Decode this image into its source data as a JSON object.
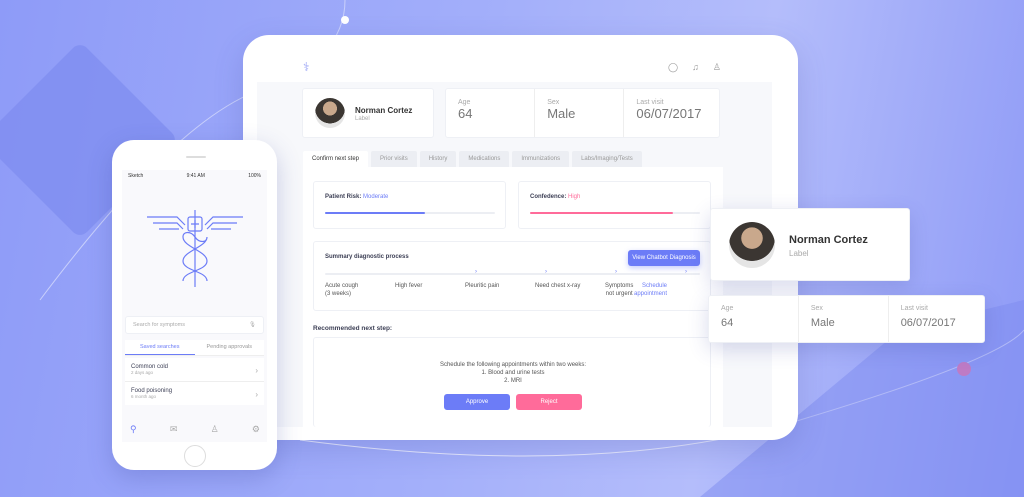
{
  "colors": {
    "accent": "#6c7cf7",
    "pink": "#ff6b9a"
  },
  "tablet": {
    "icons": [
      "chat-icon",
      "bell-icon",
      "user-icon"
    ],
    "patient": {
      "name": "Norman Cortez",
      "label": "Label"
    },
    "stats": [
      {
        "label": "Age",
        "value": "64"
      },
      {
        "label": "Sex",
        "value": "Male"
      },
      {
        "label": "Last visit",
        "value": "06/07/2017"
      }
    ],
    "tabs": [
      "Confirm next step",
      "Prior visits",
      "History",
      "Medications",
      "Immunizations",
      "Labs/Imaging/Tests"
    ],
    "risk": {
      "label": "Patient Risk:",
      "value": "Moderate",
      "level": 0.59
    },
    "confidence": {
      "label": "Confedence:",
      "value": "High",
      "level": 0.84
    },
    "summary": {
      "title": "Summary diagnostic process",
      "button": "View Chatbot Diagnosis",
      "steps": [
        [
          "Acute cough",
          "(3 weeks)"
        ],
        [
          "High fever",
          ""
        ],
        [
          "Pleuritic pain",
          ""
        ],
        [
          "Need chest x-ray",
          ""
        ],
        [
          "Symptoms",
          "not urgent"
        ],
        [
          "Schedule",
          "appointment"
        ]
      ]
    },
    "recommended": {
      "title": "Recommended next step:",
      "lines": [
        "Schedule the following appointments within two weeks:",
        "1. Blood and urine tests",
        "2. MRI"
      ],
      "approve": "Approve",
      "reject": "Reject"
    }
  },
  "phone": {
    "status": {
      "carrier": "Sketch",
      "time": "9:41 AM",
      "battery": "100%"
    },
    "search_placeholder": "Search for symptoms",
    "tabs": [
      "Saved searches",
      "Pending approvals"
    ],
    "items": [
      {
        "title": "Common cold",
        "sub": "2 days ago"
      },
      {
        "title": "Food poisoning",
        "sub": "6 month ago"
      }
    ],
    "nav": [
      "search-icon",
      "mail-icon",
      "profile-icon",
      "settings-icon"
    ]
  }
}
